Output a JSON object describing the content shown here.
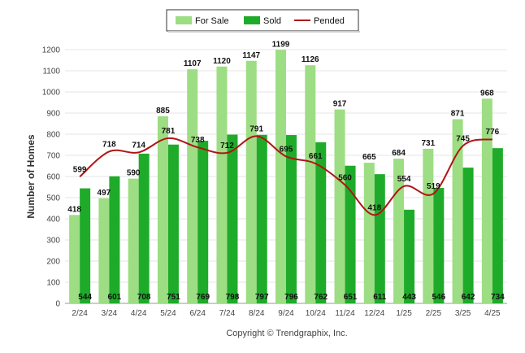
{
  "chart_data": {
    "type": "bar",
    "categories": [
      "2/24",
      "3/24",
      "4/24",
      "5/24",
      "6/24",
      "7/24",
      "8/24",
      "9/24",
      "10/24",
      "11/24",
      "12/24",
      "1/25",
      "2/25",
      "3/25",
      "4/25"
    ],
    "series": [
      {
        "name": "For Sale",
        "kind": "bar",
        "values": [
          418,
          497,
          590,
          885,
          1107,
          1120,
          1147,
          1199,
          1126,
          917,
          665,
          684,
          731,
          871,
          968
        ]
      },
      {
        "name": "Sold",
        "kind": "bar",
        "values": [
          544,
          601,
          708,
          751,
          769,
          798,
          797,
          796,
          762,
          651,
          611,
          443,
          546,
          642,
          734
        ]
      },
      {
        "name": "Pended",
        "kind": "line",
        "values": [
          599,
          718,
          714,
          781,
          738,
          712,
          791,
          695,
          661,
          560,
          418,
          554,
          519,
          745,
          776
        ]
      }
    ],
    "ylabel": "Number of Homes",
    "xlabel": "",
    "ylim": [
      0,
      1200
    ],
    "yticks": [
      0,
      100,
      200,
      300,
      400,
      500,
      600,
      700,
      800,
      900,
      1000,
      1100,
      1200
    ],
    "grid": true,
    "legend_position": "top-center",
    "colors": {
      "For Sale": "#9ddd83",
      "Sold": "#1fab2a",
      "Pended": "#b01414"
    },
    "footer": "Copyright © Trendgraphix, Inc."
  }
}
